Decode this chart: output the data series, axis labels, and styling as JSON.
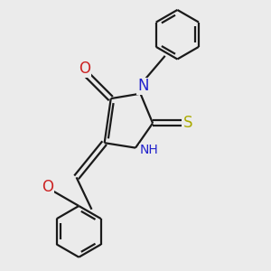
{
  "bg_color": "#ebebeb",
  "bond_color": "#1a1a1a",
  "N_color": "#2222cc",
  "O_color": "#cc2222",
  "S_color": "#aaaa00",
  "line_width": 1.6,
  "figsize": [
    3.0,
    3.0
  ],
  "dpi": 100,
  "xlim": [
    -0.5,
    3.2
  ],
  "ylim": [
    -2.8,
    2.6
  ]
}
